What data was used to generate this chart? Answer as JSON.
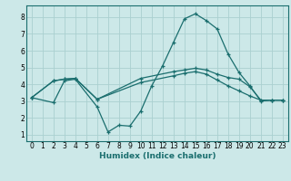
{
  "xlabel": "Humidex (Indice chaleur)",
  "bg_color": "#cce8e8",
  "grid_color": "#aad0d0",
  "line_color": "#1a6e6e",
  "lines": [
    {
      "x": [
        0,
        2,
        3,
        4,
        6,
        7,
        8,
        9,
        10,
        11,
        12,
        13,
        14,
        15,
        16,
        17,
        18,
        19,
        20,
        21,
        22,
        23
      ],
      "y": [
        3.2,
        2.9,
        4.2,
        4.3,
        2.65,
        1.15,
        1.55,
        1.5,
        2.4,
        3.9,
        5.1,
        6.5,
        7.9,
        8.2,
        7.8,
        7.3,
        5.8,
        4.7,
        3.9,
        3.0,
        3.05,
        3.05
      ]
    },
    {
      "x": [
        0,
        2,
        3,
        4,
        6,
        10,
        13,
        14,
        15,
        16,
        17,
        18,
        19,
        20,
        21,
        22,
        23
      ],
      "y": [
        3.2,
        4.2,
        4.3,
        4.35,
        3.1,
        4.35,
        4.75,
        4.85,
        4.95,
        4.85,
        4.6,
        4.4,
        4.3,
        3.85,
        3.05,
        3.05,
        3.05
      ]
    },
    {
      "x": [
        0,
        2,
        3,
        4,
        6,
        10,
        13,
        14,
        15,
        16,
        17,
        18,
        19,
        20,
        21,
        22,
        23
      ],
      "y": [
        3.2,
        4.2,
        4.3,
        4.35,
        3.1,
        4.1,
        4.5,
        4.65,
        4.75,
        4.6,
        4.25,
        3.9,
        3.6,
        3.3,
        3.05,
        3.05,
        3.05
      ]
    }
  ],
  "xlim": [
    -0.5,
    23.5
  ],
  "ylim": [
    0.6,
    8.7
  ],
  "yticks": [
    1,
    2,
    3,
    4,
    5,
    6,
    7,
    8
  ],
  "xticks": [
    0,
    1,
    2,
    3,
    4,
    5,
    6,
    7,
    8,
    9,
    10,
    11,
    12,
    13,
    14,
    15,
    16,
    17,
    18,
    19,
    20,
    21,
    22,
    23
  ],
  "tick_fontsize": 5.5,
  "xlabel_fontsize": 6.5
}
